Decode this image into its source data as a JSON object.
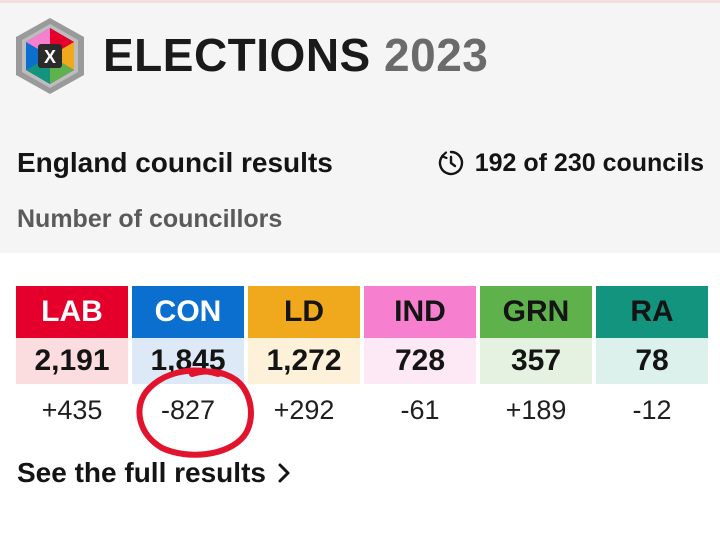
{
  "header": {
    "brand_word": "ELECTIONS",
    "brand_year": "2023",
    "logo_icon": "elections-x-cube-icon",
    "logo_letter": "X"
  },
  "summary": {
    "title": "England council results",
    "progress_icon": "clock-progress-icon",
    "progress_text": "192 of 230 councils",
    "subtitle": "Number of councillors"
  },
  "parties": [
    {
      "abbr": "LAB",
      "seats": "2,191",
      "change": "+435",
      "color": "#e4002b",
      "text_color": "#ffffff",
      "tint": "#fbdde0"
    },
    {
      "abbr": "CON",
      "seats": "1,845",
      "change": "-827",
      "color": "#0a6fce",
      "text_color": "#ffffff",
      "tint": "#dde9f6"
    },
    {
      "abbr": "LD",
      "seats": "1,272",
      "change": "+292",
      "color": "#f0a81c",
      "text_color": "#141414",
      "tint": "#fdf1da"
    },
    {
      "abbr": "IND",
      "seats": "728",
      "change": "-61",
      "color": "#f77fcf",
      "text_color": "#141414",
      "tint": "#fde9f6"
    },
    {
      "abbr": "GRN",
      "seats": "357",
      "change": "+189",
      "color": "#5fb14b",
      "text_color": "#141414",
      "tint": "#e5f2e1"
    },
    {
      "abbr": "RA",
      "seats": "78",
      "change": "-12",
      "color": "#12947f",
      "text_color": "#141414",
      "tint": "#dcf0ec"
    }
  ],
  "link": {
    "label": "See the full results",
    "icon": "chevron-right-icon"
  },
  "annotation": {
    "color": "#e2142d",
    "icon": "hand-drawn-circle-annotation"
  }
}
